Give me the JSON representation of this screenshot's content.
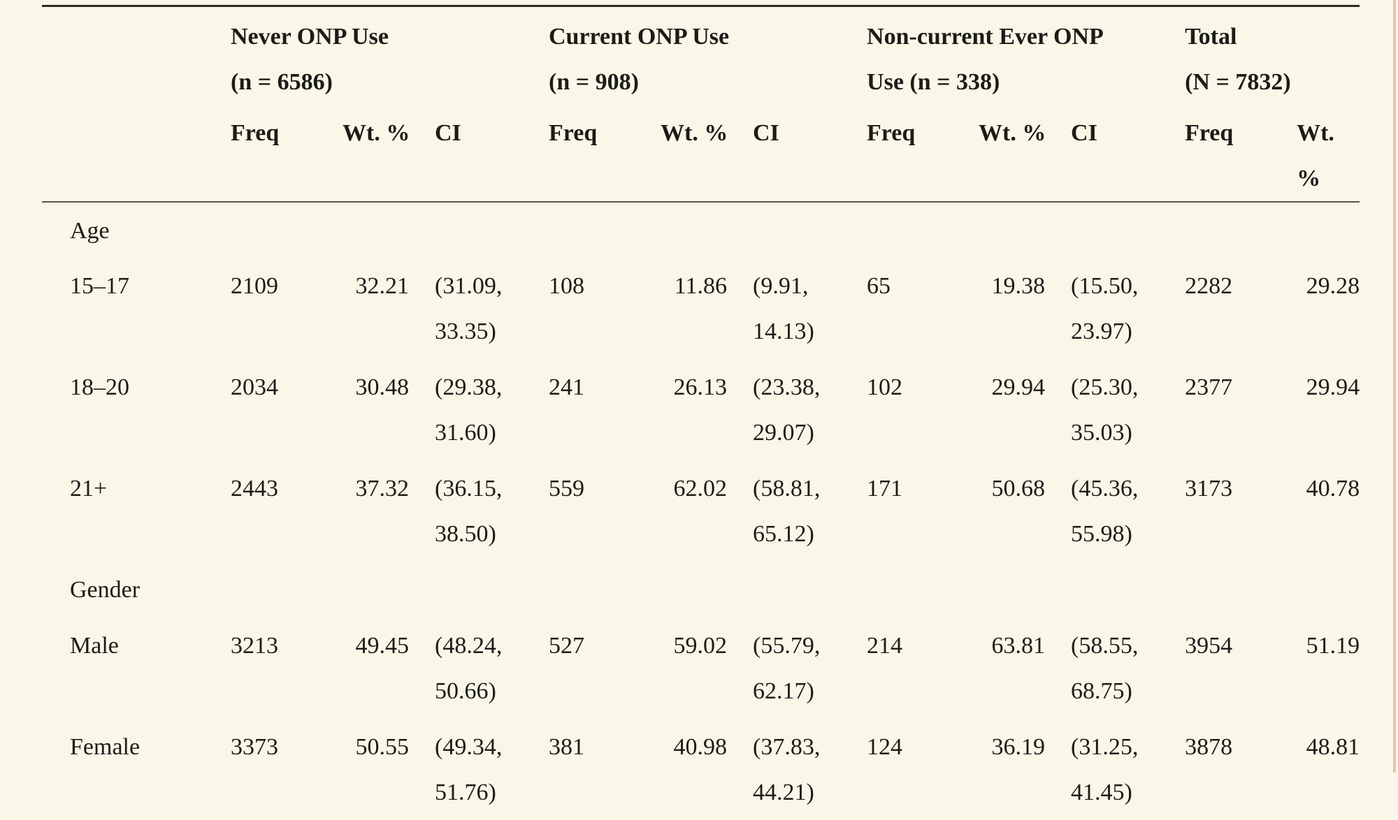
{
  "page": {
    "background_color": "#FAF6E8",
    "edge_stripe_color": "#EAC2B3",
    "rule_color": "#2B2B24"
  },
  "table": {
    "groups": [
      {
        "title": [
          "Never ONP Use",
          "(n = 6586)"
        ],
        "cols": [
          "Freq",
          "Wt. %",
          "CI"
        ]
      },
      {
        "title": [
          "Current ONP Use",
          "(n = 908)"
        ],
        "cols": [
          "Freq",
          "Wt. %",
          "CI"
        ]
      },
      {
        "title": [
          "Non-current Ever ONP",
          "Use (n = 338)"
        ],
        "cols": [
          "Freq",
          "Wt. %",
          "CI"
        ]
      },
      {
        "title": [
          "Total",
          "(N = 7832)"
        ],
        "cols": [
          "Freq",
          "Wt. %"
        ]
      }
    ],
    "rows": [
      {
        "type": "category",
        "label": "Age"
      },
      {
        "type": "data",
        "label": "15–17",
        "never_freq": "2109",
        "never_wt": "32.21",
        "never_ci": [
          "(31.09,",
          "33.35)"
        ],
        "current_freq": "108",
        "current_wt": "11.86",
        "current_ci": [
          "(9.91,",
          "14.13)"
        ],
        "noncurrent_freq": "65",
        "noncurrent_wt": "19.38",
        "noncurrent_ci": [
          "(15.50,",
          "23.97)"
        ],
        "total_freq": "2282",
        "total_wt": "29.28"
      },
      {
        "type": "data",
        "label": "18–20",
        "never_freq": "2034",
        "never_wt": "30.48",
        "never_ci": [
          "(29.38,",
          "31.60)"
        ],
        "current_freq": "241",
        "current_wt": "26.13",
        "current_ci": [
          "(23.38,",
          "29.07)"
        ],
        "noncurrent_freq": "102",
        "noncurrent_wt": "29.94",
        "noncurrent_ci": [
          "(25.30,",
          "35.03)"
        ],
        "total_freq": "2377",
        "total_wt": "29.94"
      },
      {
        "type": "data",
        "label": "21+",
        "never_freq": "2443",
        "never_wt": "37.32",
        "never_ci": [
          "(36.15,",
          "38.50)"
        ],
        "current_freq": "559",
        "current_wt": "62.02",
        "current_ci": [
          "(58.81,",
          "65.12)"
        ],
        "noncurrent_freq": "171",
        "noncurrent_wt": "50.68",
        "noncurrent_ci": [
          "(45.36,",
          "55.98)"
        ],
        "total_freq": "3173",
        "total_wt": "40.78"
      },
      {
        "type": "category",
        "label": "Gender"
      },
      {
        "type": "data",
        "label": "Male",
        "never_freq": "3213",
        "never_wt": "49.45",
        "never_ci": [
          "(48.24,",
          "50.66)"
        ],
        "current_freq": "527",
        "current_wt": "59.02",
        "current_ci": [
          "(55.79,",
          "62.17)"
        ],
        "noncurrent_freq": "214",
        "noncurrent_wt": "63.81",
        "noncurrent_ci": [
          "(58.55,",
          "68.75)"
        ],
        "total_freq": "3954",
        "total_wt": "51.19"
      },
      {
        "type": "data",
        "label": "Female",
        "never_freq": "3373",
        "never_wt": "50.55",
        "never_ci": [
          "(49.34,",
          "51.76)"
        ],
        "current_freq": "381",
        "current_wt": "40.98",
        "current_ci": [
          "(37.83,",
          "44.21)"
        ],
        "noncurrent_freq": "124",
        "noncurrent_wt": "36.19",
        "noncurrent_ci": [
          "(31.25,",
          "41.45)"
        ],
        "total_freq": "3878",
        "total_wt": "48.81"
      }
    ]
  }
}
